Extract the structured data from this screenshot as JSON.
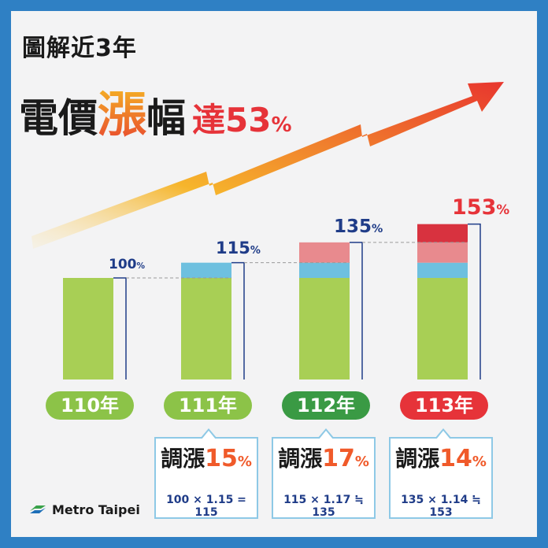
{
  "title": {
    "line1": "圖解近3年",
    "line2_a": "電價",
    "line2_b": "漲",
    "line2_c": "幅",
    "rise_label": "達53",
    "rise_pct": "%"
  },
  "colors": {
    "green": "#a8cf55",
    "blue": "#6ec0df",
    "pink": "#e88a8e",
    "red": "#d8323f",
    "navy": "#1f3c88",
    "pill_green_light": "#8cc348",
    "pill_green_dark": "#3a9a44",
    "pill_red": "#e63339"
  },
  "chart_data": {
    "type": "bar",
    "categories": [
      "110年",
      "111年",
      "112年",
      "113年"
    ],
    "totals": [
      100,
      115,
      135,
      153
    ],
    "stacks": [
      [
        100
      ],
      [
        100,
        15
      ],
      [
        100,
        15,
        20
      ],
      [
        100,
        15,
        20,
        18
      ]
    ],
    "value_labels": [
      {
        "num": "100",
        "pct": "%"
      },
      {
        "num": "115",
        "pct": "%"
      },
      {
        "num": "135",
        "pct": "%"
      },
      {
        "num": "153",
        "pct": "%"
      }
    ]
  },
  "notes": [
    {
      "label": "調漲",
      "num": "15",
      "pct": "%",
      "calc": "100 × 1.15 = 115"
    },
    {
      "label": "調漲",
      "num": "17",
      "pct": "%",
      "calc": "115 × 1.17 ≒ 135"
    },
    {
      "label": "調漲",
      "num": "14",
      "pct": "%",
      "calc": "135 × 1.14 ≒ 153"
    }
  ],
  "logo": {
    "text": "Metro Taipei"
  }
}
